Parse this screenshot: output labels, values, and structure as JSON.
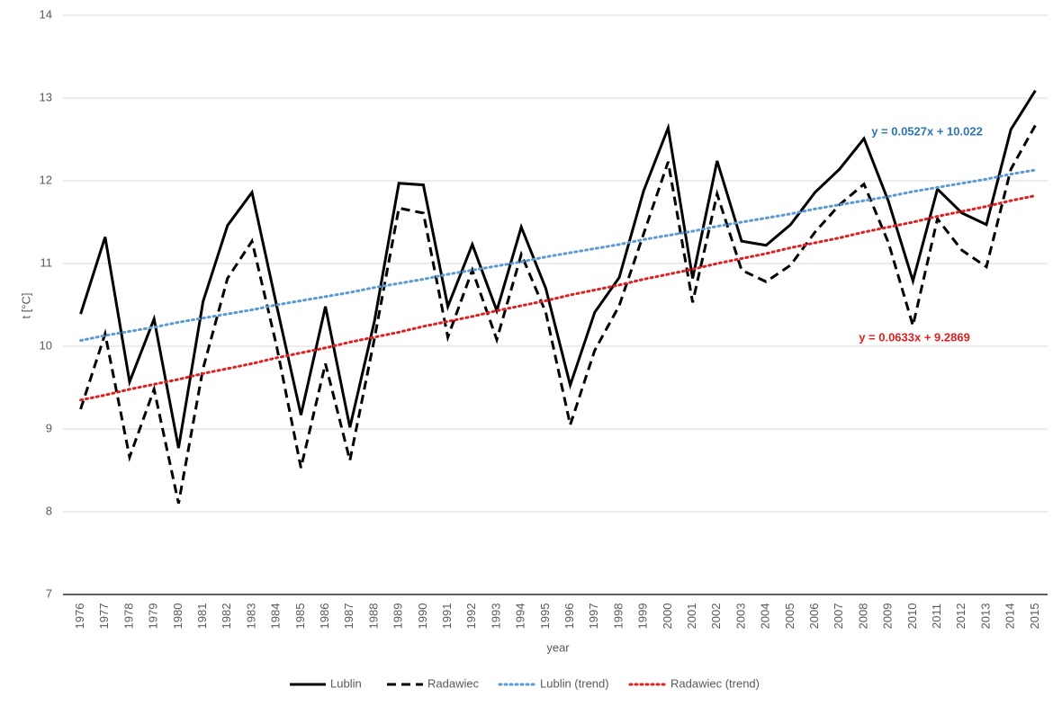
{
  "chart_data": {
    "type": "line",
    "x_label": "year",
    "y_label": "t [°C]",
    "categories": [
      "1976",
      "1977",
      "1978",
      "1979",
      "1980",
      "1981",
      "1982",
      "1983",
      "1984",
      "1985",
      "1986",
      "1987",
      "1988",
      "1989",
      "1990",
      "1991",
      "1992",
      "1993",
      "1994",
      "1995",
      "1996",
      "1997",
      "1998",
      "1999",
      "2000",
      "2001",
      "2002",
      "2003",
      "2004",
      "2005",
      "2006",
      "2007",
      "2008",
      "2009",
      "2010",
      "2011",
      "2012",
      "2013",
      "2014",
      "2015"
    ],
    "series": [
      {
        "name": "Lublin",
        "color": "#000000",
        "style": "solid",
        "values": [
          10.39,
          11.32,
          9.57,
          10.33,
          8.77,
          10.54,
          11.46,
          11.86,
          10.5,
          9.17,
          10.48,
          9.02,
          10.3,
          11.97,
          11.95,
          10.48,
          11.23,
          10.43,
          11.44,
          10.7,
          9.53,
          10.41,
          10.83,
          11.88,
          12.64,
          10.82,
          12.24,
          11.27,
          11.22,
          11.47,
          11.86,
          12.14,
          12.51,
          11.75,
          10.79,
          11.9,
          11.61,
          11.47,
          12.62,
          13.09
        ]
      },
      {
        "name": "Radawiec",
        "color": "#000000",
        "style": "dashed",
        "values": [
          9.24,
          10.15,
          8.66,
          9.48,
          8.1,
          9.73,
          10.82,
          11.27,
          10.01,
          8.53,
          9.79,
          8.62,
          10.09,
          11.67,
          11.61,
          10.11,
          10.92,
          10.08,
          11.11,
          10.41,
          9.05,
          9.95,
          10.49,
          11.36,
          12.23,
          10.53,
          11.84,
          10.92,
          10.78,
          10.98,
          11.38,
          11.71,
          11.96,
          11.25,
          10.25,
          11.54,
          11.16,
          10.96,
          12.14,
          12.67
        ]
      },
      {
        "name": "Lublin (trend)",
        "color": "#5b9bd5",
        "style": "dotted",
        "values": [
          10.07,
          10.13,
          10.18,
          10.23,
          10.29,
          10.34,
          10.39,
          10.44,
          10.5,
          10.55,
          10.6,
          10.65,
          10.71,
          10.76,
          10.81,
          10.87,
          10.92,
          10.97,
          11.02,
          11.08,
          11.13,
          11.18,
          11.23,
          11.29,
          11.34,
          11.39,
          11.45,
          11.5,
          11.55,
          11.6,
          11.66,
          11.71,
          11.76,
          11.81,
          11.87,
          11.92,
          11.97,
          12.02,
          12.08,
          12.13
        ]
      },
      {
        "name": "Radawiec (trend)",
        "color": "#e02020",
        "style": "dotted",
        "values": [
          9.35,
          9.41,
          9.48,
          9.54,
          9.6,
          9.67,
          9.73,
          9.79,
          9.86,
          9.92,
          9.98,
          10.05,
          10.11,
          10.17,
          10.24,
          10.3,
          10.36,
          10.43,
          10.49,
          10.55,
          10.62,
          10.68,
          10.74,
          10.81,
          10.87,
          10.93,
          11.0,
          11.06,
          11.12,
          11.19,
          11.25,
          11.31,
          11.38,
          11.44,
          11.5,
          11.57,
          11.63,
          11.69,
          11.76,
          11.82
        ]
      }
    ],
    "annotations": [
      {
        "text": "y = 0.0527x + 10.022",
        "color": "#2e75b6"
      },
      {
        "text": "y = 0.0633x + 9.2869",
        "color": "#e02020"
      }
    ],
    "ylim": [
      7,
      14
    ],
    "yticks": [
      7,
      8,
      9,
      10,
      11,
      12,
      13,
      14
    ],
    "grid": true,
    "legend": "bottom"
  }
}
